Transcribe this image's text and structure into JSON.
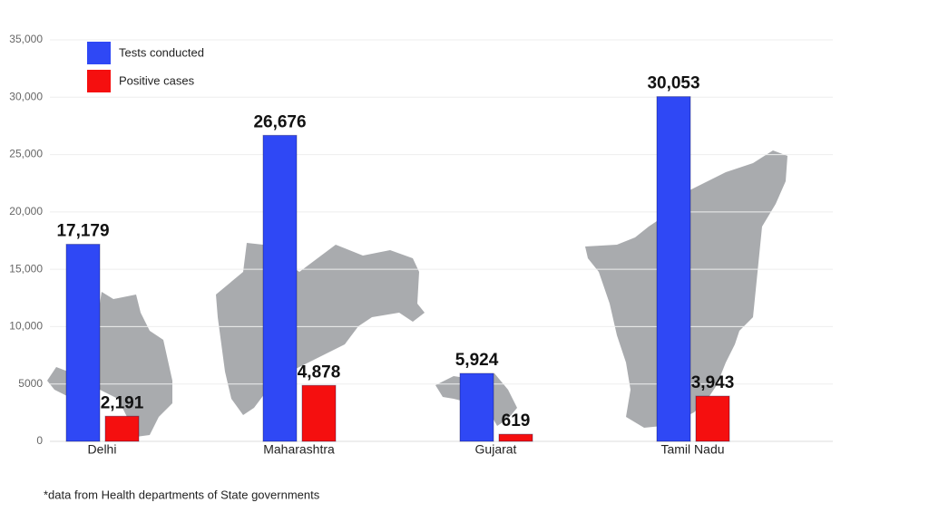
{
  "chart_data": {
    "type": "bar",
    "categories": [
      "Delhi",
      "Maharashtra",
      "Gujarat",
      "Tamil Nadu"
    ],
    "series": [
      {
        "name": "Tests conducted",
        "color": "#2f48f5",
        "values": [
          17179,
          26676,
          5924,
          30053
        ],
        "value_labels": [
          "17,179",
          "26,676",
          "5,924",
          "30,053"
        ]
      },
      {
        "name": "Positive cases",
        "color": "#f50f0f",
        "values": [
          2191,
          4878,
          619,
          3943
        ],
        "value_labels": [
          "2,191",
          "4,878",
          "619",
          "3,943"
        ]
      }
    ],
    "ylim": [
      0,
      35000
    ],
    "yticks": [
      0,
      5000,
      {
        "value": 10000,
        "label": "10,000"
      },
      {
        "value": 15000,
        "label": "15,000"
      },
      {
        "value": 20000,
        "label": "20,000"
      },
      {
        "value": 25000,
        "label": "25,000"
      },
      {
        "value": 30000,
        "label": "30,000"
      },
      {
        "value": 35000,
        "label": "35,000"
      }
    ],
    "grid": true,
    "legend": "top-left",
    "footnote": "*data from Health departments of State governments"
  }
}
